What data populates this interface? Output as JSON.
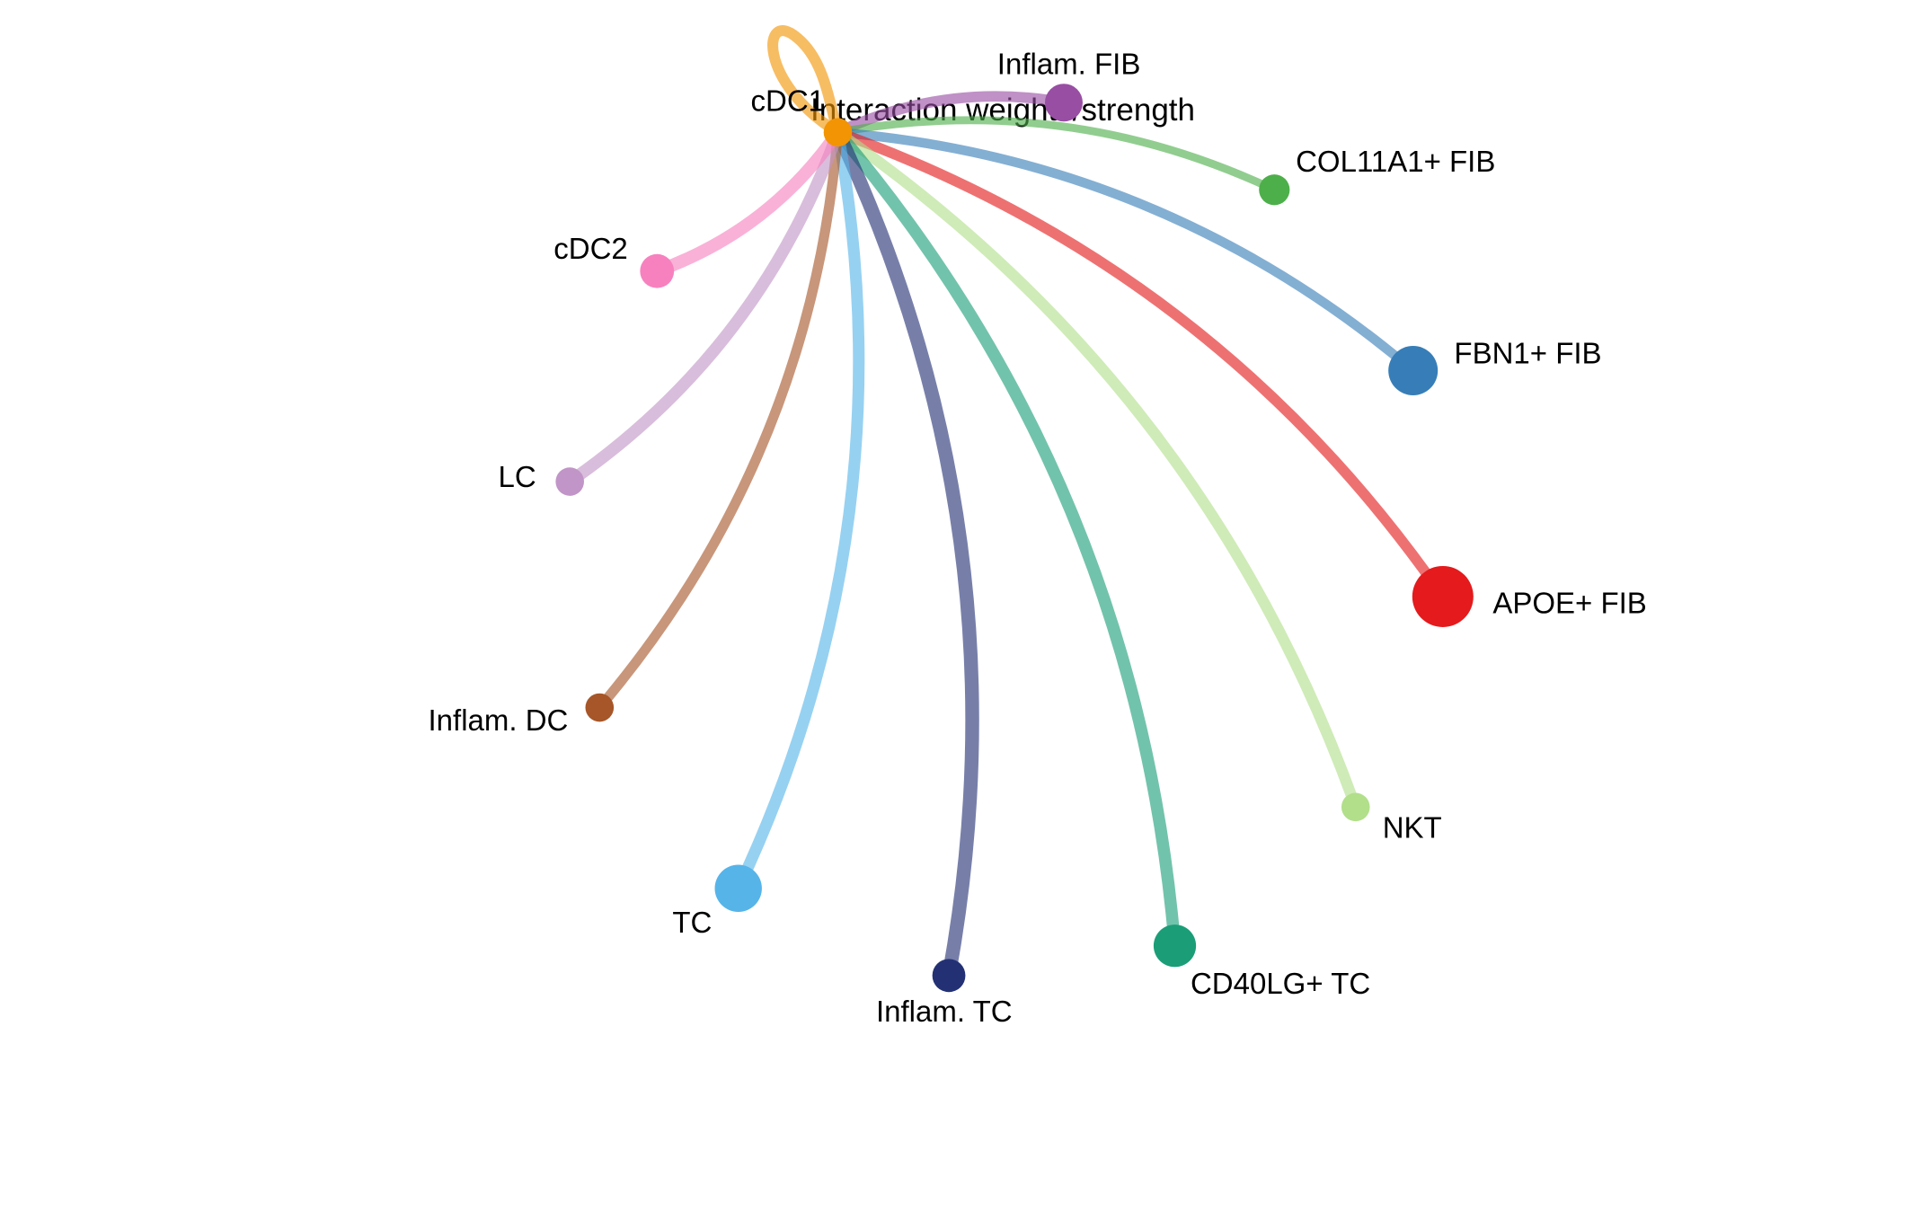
{
  "title": "Interaction weights/strength",
  "source_node": "cDC1",
  "chart_data": {
    "type": "network",
    "layout": "circle",
    "title": "Interaction weights/strength",
    "nodes": [
      {
        "id": "cDC1",
        "label": "cDC1",
        "color": "#F29403",
        "relative_size": 0.3
      },
      {
        "id": "Inflam. FIB",
        "label": "Inflam. FIB",
        "color": "#984EA3",
        "relative_size": 0.5
      },
      {
        "id": "COL11A1+ FIB",
        "label": "COL11A1+ FIB",
        "color": "#4DAF4A",
        "relative_size": 0.35
      },
      {
        "id": "FBN1+ FIB",
        "label": "FBN1+ FIB",
        "color": "#377EB8",
        "relative_size": 0.75
      },
      {
        "id": "APOE+ FIB",
        "label": "APOE+ FIB",
        "color": "#E41A1C",
        "relative_size": 1.0
      },
      {
        "id": "NKT",
        "label": "NKT",
        "color": "#B2DF8A",
        "relative_size": 0.3
      },
      {
        "id": "CD40LG+ TC",
        "label": "CD40LG+ TC",
        "color": "#1B9E77",
        "relative_size": 0.6
      },
      {
        "id": "Inflam. TC",
        "label": "Inflam. TC",
        "color": "#233174",
        "relative_size": 0.4
      },
      {
        "id": "TC",
        "label": "TC",
        "color": "#56B4E9",
        "relative_size": 0.7
      },
      {
        "id": "Inflam. DC",
        "label": "Inflam. DC",
        "color": "#A65628",
        "relative_size": 0.3
      },
      {
        "id": "LC",
        "label": "LC",
        "color": "#C195C7",
        "relative_size": 0.3
      },
      {
        "id": "cDC2",
        "label": "cDC2",
        "color": "#F781BF",
        "relative_size": 0.42
      }
    ],
    "edges": [
      {
        "from": "cDC1",
        "to": "cDC1",
        "relative_weight": 0.85,
        "color": "#F29403"
      },
      {
        "from": "cDC1",
        "to": "Inflam. FIB",
        "relative_weight": 0.65,
        "color": "#984EA3"
      },
      {
        "from": "cDC1",
        "to": "COL11A1+ FIB",
        "relative_weight": 0.4,
        "color": "#4DAF4A"
      },
      {
        "from": "cDC1",
        "to": "FBN1+ FIB",
        "relative_weight": 0.55,
        "color": "#377EB8"
      },
      {
        "from": "cDC1",
        "to": "APOE+ FIB",
        "relative_weight": 0.65,
        "color": "#E41A1C"
      },
      {
        "from": "cDC1",
        "to": "NKT",
        "relative_weight": 0.7,
        "color": "#B2DF8A"
      },
      {
        "from": "cDC1",
        "to": "CD40LG+ TC",
        "relative_weight": 0.8,
        "color": "#1B9E77"
      },
      {
        "from": "cDC1",
        "to": "Inflam. TC",
        "relative_weight": 0.95,
        "color": "#233174"
      },
      {
        "from": "cDC1",
        "to": "TC",
        "relative_weight": 0.75,
        "color": "#56B4E9"
      },
      {
        "from": "cDC1",
        "to": "Inflam. DC",
        "relative_weight": 0.6,
        "color": "#A65628"
      },
      {
        "from": "cDC1",
        "to": "LC",
        "relative_weight": 0.8,
        "color": "#C195C7"
      },
      {
        "from": "cDC1",
        "to": "cDC2",
        "relative_weight": 0.85,
        "color": "#F781BF"
      }
    ]
  }
}
